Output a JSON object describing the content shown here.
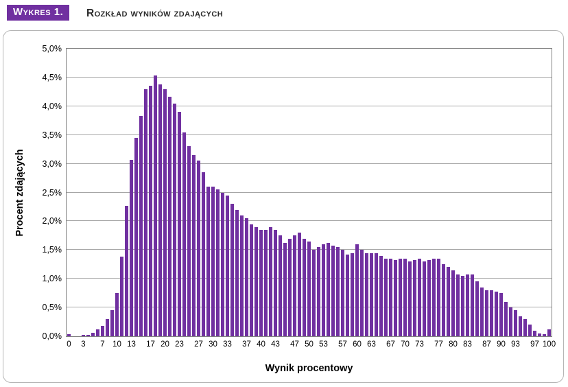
{
  "header": {
    "badge_label": "Wykres 1.",
    "title": "Rozkład wyników zdających"
  },
  "chart_data": {
    "type": "bar",
    "title": "Rozkład wyników zdających",
    "xlabel": "Wynik procentowy",
    "ylabel": "Procent zdających",
    "x_range": [
      0,
      100
    ],
    "x_step": 1,
    "values": [
      0.04,
      0.0,
      0.0,
      0.02,
      0.03,
      0.06,
      0.12,
      0.18,
      0.3,
      0.45,
      0.75,
      1.38,
      2.27,
      3.07,
      3.45,
      3.83,
      4.3,
      4.35,
      4.54,
      4.38,
      4.3,
      4.17,
      4.05,
      3.9,
      3.55,
      3.3,
      3.15,
      3.05,
      2.85,
      2.6,
      2.6,
      2.55,
      2.5,
      2.45,
      2.3,
      2.2,
      2.1,
      2.05,
      1.95,
      1.9,
      1.85,
      1.85,
      1.9,
      1.85,
      1.75,
      1.62,
      1.7,
      1.75,
      1.8,
      1.7,
      1.65,
      1.5,
      1.55,
      1.6,
      1.62,
      1.58,
      1.55,
      1.5,
      1.42,
      1.45,
      1.6,
      1.5,
      1.45,
      1.45,
      1.45,
      1.4,
      1.35,
      1.35,
      1.33,
      1.35,
      1.35,
      1.3,
      1.33,
      1.35,
      1.3,
      1.32,
      1.35,
      1.35,
      1.25,
      1.2,
      1.15,
      1.07,
      1.05,
      1.07,
      1.07,
      0.95,
      0.85,
      0.8,
      0.8,
      0.78,
      0.75,
      0.6,
      0.5,
      0.45,
      0.35,
      0.3,
      0.2,
      0.1,
      0.05,
      0.04,
      0.12
    ],
    "ylim": [
      0,
      5
    ],
    "ytick_step": 0.5,
    "y_tick_labels": [
      "5,0%",
      "4,5%",
      "4,0%",
      "3,5%",
      "3,0%",
      "2,5%",
      "2,0%",
      "1,5%",
      "1,0%",
      "0,5%",
      "0,0%"
    ],
    "x_tick_values": [
      0,
      3,
      7,
      10,
      13,
      17,
      20,
      23,
      27,
      30,
      33,
      37,
      40,
      43,
      47,
      50,
      53,
      57,
      60,
      63,
      67,
      70,
      73,
      77,
      80,
      83,
      87,
      90,
      93,
      97,
      100
    ],
    "bar_color": "#7030A0",
    "grid": true,
    "legend": "none"
  }
}
